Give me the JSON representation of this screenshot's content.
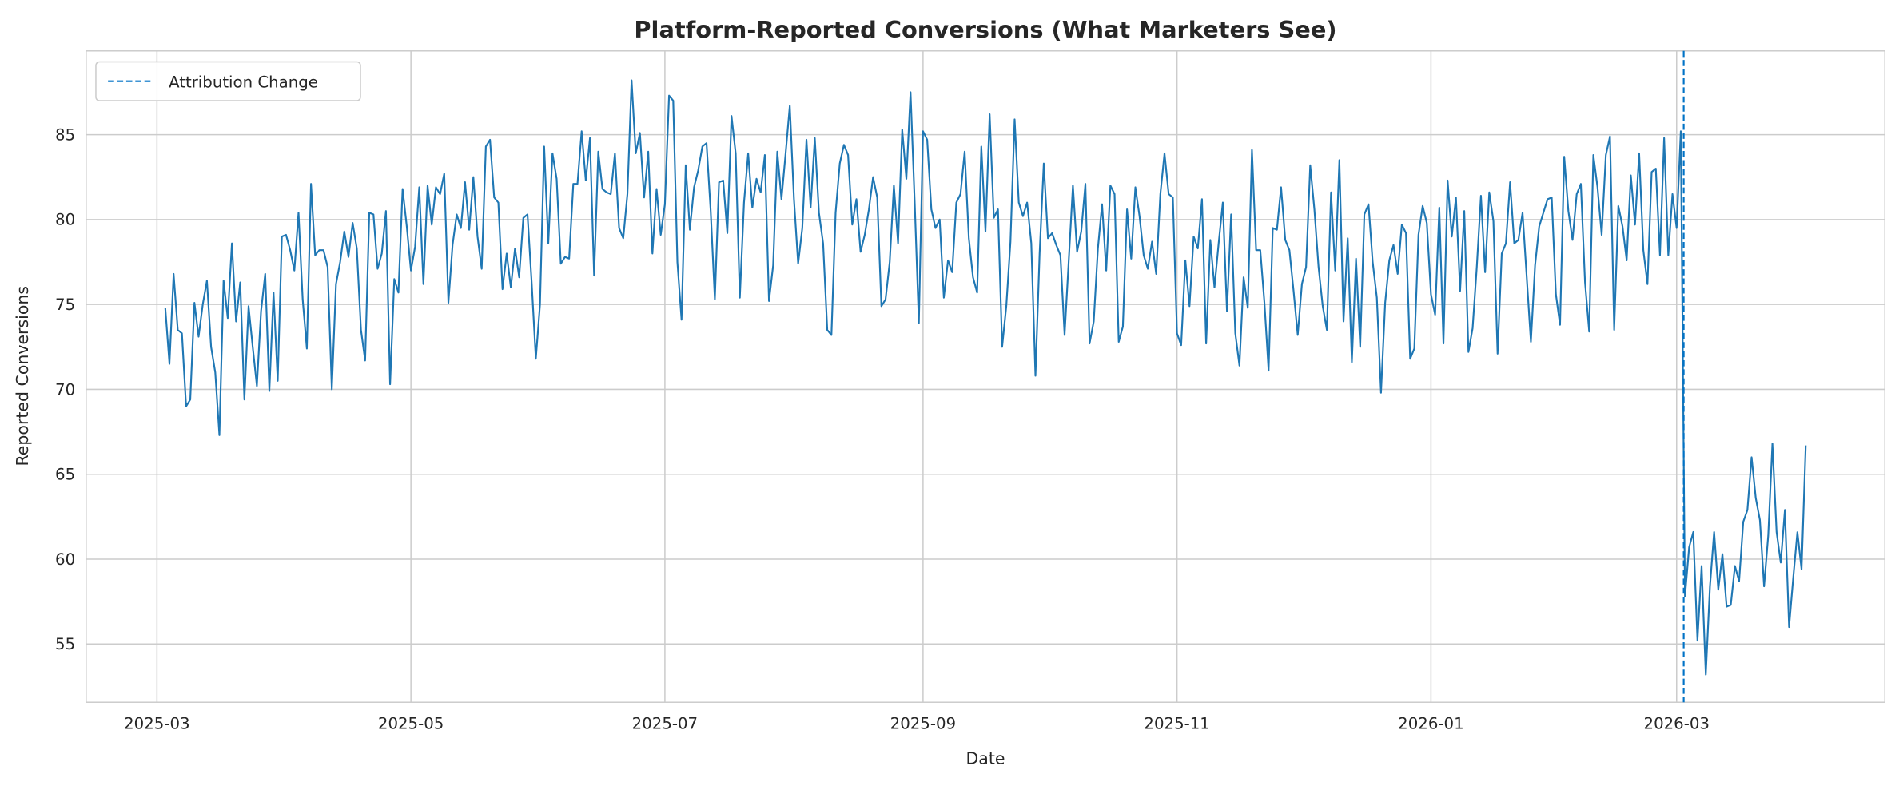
{
  "chart_data": {
    "type": "line",
    "title": "Platform-Reported Conversions (What Marketers See)",
    "xlabel": "Date",
    "ylabel": "Reported Conversions",
    "xlim": [
      "2025-02-12",
      "2026-04-20"
    ],
    "ylim": [
      51.57,
      89.93
    ],
    "grid": true,
    "legend_position": "top-left",
    "xticks": [
      "2025-03",
      "2025-05",
      "2025-07",
      "2025-09",
      "2025-11",
      "2026-01",
      "2026-03"
    ],
    "yticks": [
      55,
      60,
      65,
      70,
      75,
      80,
      85
    ],
    "series": [
      {
        "name": "Reported Conversions",
        "color": "#1f77b4",
        "start_date": "2025-03-03",
        "frequency": "daily",
        "values": [
          74.8,
          71.5,
          76.8,
          73.5,
          73.3,
          69.0,
          69.4,
          75.1,
          73.1,
          75.0,
          76.4,
          72.5,
          71.0,
          67.3,
          76.4,
          74.2,
          78.6,
          74.0,
          76.3,
          69.4,
          74.9,
          72.5,
          70.2,
          74.6,
          76.8,
          69.9,
          75.7,
          70.5,
          79.0,
          79.1,
          78.2,
          77.0,
          80.4,
          75.3,
          72.4,
          82.1,
          77.9,
          78.2,
          78.2,
          77.2,
          70.0,
          76.2,
          77.5,
          79.3,
          77.8,
          79.8,
          78.3,
          73.5,
          71.7,
          80.4,
          80.3,
          77.1,
          78.0,
          80.5,
          70.3,
          76.5,
          75.7,
          81.8,
          79.6,
          77.0,
          78.4,
          81.9,
          76.2,
          82.0,
          79.7,
          81.9,
          81.5,
          82.7,
          75.1,
          78.5,
          80.3,
          79.5,
          82.2,
          79.4,
          82.5,
          79.0,
          77.1,
          84.3,
          84.7,
          81.3,
          81.0,
          75.9,
          78.0,
          76.0,
          78.3,
          76.6,
          80.1,
          80.3,
          76.3,
          71.8,
          75.0,
          84.3,
          78.6,
          83.9,
          82.4,
          77.4,
          77.8,
          77.7,
          82.1,
          82.1,
          85.2,
          82.3,
          84.8,
          76.7,
          84.0,
          81.8,
          81.6,
          81.5,
          83.9,
          79.5,
          78.9,
          81.5,
          88.2,
          83.9,
          85.1,
          81.3,
          84.0,
          78.0,
          81.8,
          79.1,
          80.9,
          87.3,
          87.0,
          77.5,
          74.1,
          83.2,
          79.4,
          81.9,
          82.9,
          84.3,
          84.5,
          80.5,
          75.3,
          82.2,
          82.3,
          79.2,
          86.1,
          83.9,
          75.4,
          81.0,
          83.9,
          80.7,
          82.4,
          81.6,
          83.8,
          75.2,
          77.3,
          84.0,
          81.2,
          83.9,
          86.7,
          81.2,
          77.4,
          79.5,
          84.7,
          80.7,
          84.8,
          80.4,
          78.6,
          73.5,
          73.2,
          80.4,
          83.3,
          84.4,
          83.8,
          79.7,
          81.2,
          78.1,
          79.1,
          80.6,
          82.5,
          81.3,
          74.9,
          75.3,
          77.5,
          82.0,
          78.6,
          85.3,
          82.4,
          87.5,
          81.0,
          73.9,
          85.2,
          84.7,
          80.6,
          79.5,
          80.0,
          75.4,
          77.6,
          76.9,
          81.0,
          81.5,
          84.0,
          78.9,
          76.6,
          75.7,
          84.3,
          79.3,
          86.2,
          80.1,
          80.6,
          72.5,
          74.9,
          78.7,
          85.9,
          81.0,
          80.2,
          81.0,
          78.6,
          70.8,
          78.0,
          83.3,
          78.9,
          79.2,
          78.5,
          77.9,
          73.2,
          77.6,
          82.0,
          78.1,
          79.3,
          82.1,
          72.7,
          74.0,
          78.3,
          80.9,
          77.0,
          82.0,
          81.5,
          72.8,
          73.7,
          80.6,
          77.7,
          81.9,
          80.2,
          77.9,
          77.1,
          78.7,
          76.8,
          81.5,
          83.9,
          81.5,
          81.3,
          73.3,
          72.6,
          77.6,
          74.9,
          79.0,
          78.3,
          81.2,
          72.7,
          78.8,
          76.0,
          78.6,
          81.0,
          74.6,
          80.3,
          73.3,
          71.4,
          76.6,
          74.8,
          84.1,
          78.2,
          78.2,
          75.1,
          71.1,
          79.5,
          79.4,
          81.9,
          78.8,
          78.2,
          75.8,
          73.2,
          76.2,
          77.2,
          83.2,
          80.6,
          77.2,
          74.9,
          73.5,
          81.6,
          77.0,
          83.5,
          74.0,
          78.9,
          71.6,
          77.7,
          72.5,
          80.3,
          80.9,
          77.5,
          75.4,
          69.8,
          75.1,
          77.6,
          78.5,
          76.8,
          79.7,
          79.2,
          71.8,
          72.4,
          79.1,
          80.8,
          79.8,
          75.6,
          74.4,
          80.7,
          72.7,
          82.3,
          79.0,
          81.3,
          75.8,
          80.5,
          72.2,
          73.6,
          77.2,
          81.4,
          76.9,
          81.6,
          79.9,
          72.1,
          78.0,
          78.6,
          82.2,
          78.6,
          78.8,
          80.4,
          76.6,
          72.8,
          77.3,
          79.6,
          80.4,
          81.2,
          81.3,
          75.6,
          73.8,
          83.7,
          80.5,
          78.8,
          81.5,
          82.1,
          76.3,
          73.4,
          83.8,
          81.9,
          79.1,
          83.8,
          84.9,
          73.5,
          80.8,
          79.6,
          77.6,
          82.6,
          79.7,
          83.9,
          78.2,
          76.2,
          82.8,
          83.0,
          77.9,
          84.8,
          77.9,
          81.5,
          79.5,
          85.2,
          57.8,
          60.7,
          61.6,
          55.2,
          59.6,
          53.2,
          58.4,
          61.6,
          58.2,
          60.3,
          57.2,
          57.3,
          59.6,
          58.7,
          62.2,
          62.9,
          66.0,
          63.6,
          62.3,
          58.4,
          61.4,
          66.8,
          61.6,
          59.8,
          62.9,
          56.0,
          58.9,
          61.6,
          59.4,
          66.7
        ]
      }
    ],
    "annotations": [
      {
        "type": "vline",
        "date": "2026-03-03",
        "label": "Attribution Change",
        "style": "dashed",
        "color": "#0072c6"
      }
    ]
  }
}
